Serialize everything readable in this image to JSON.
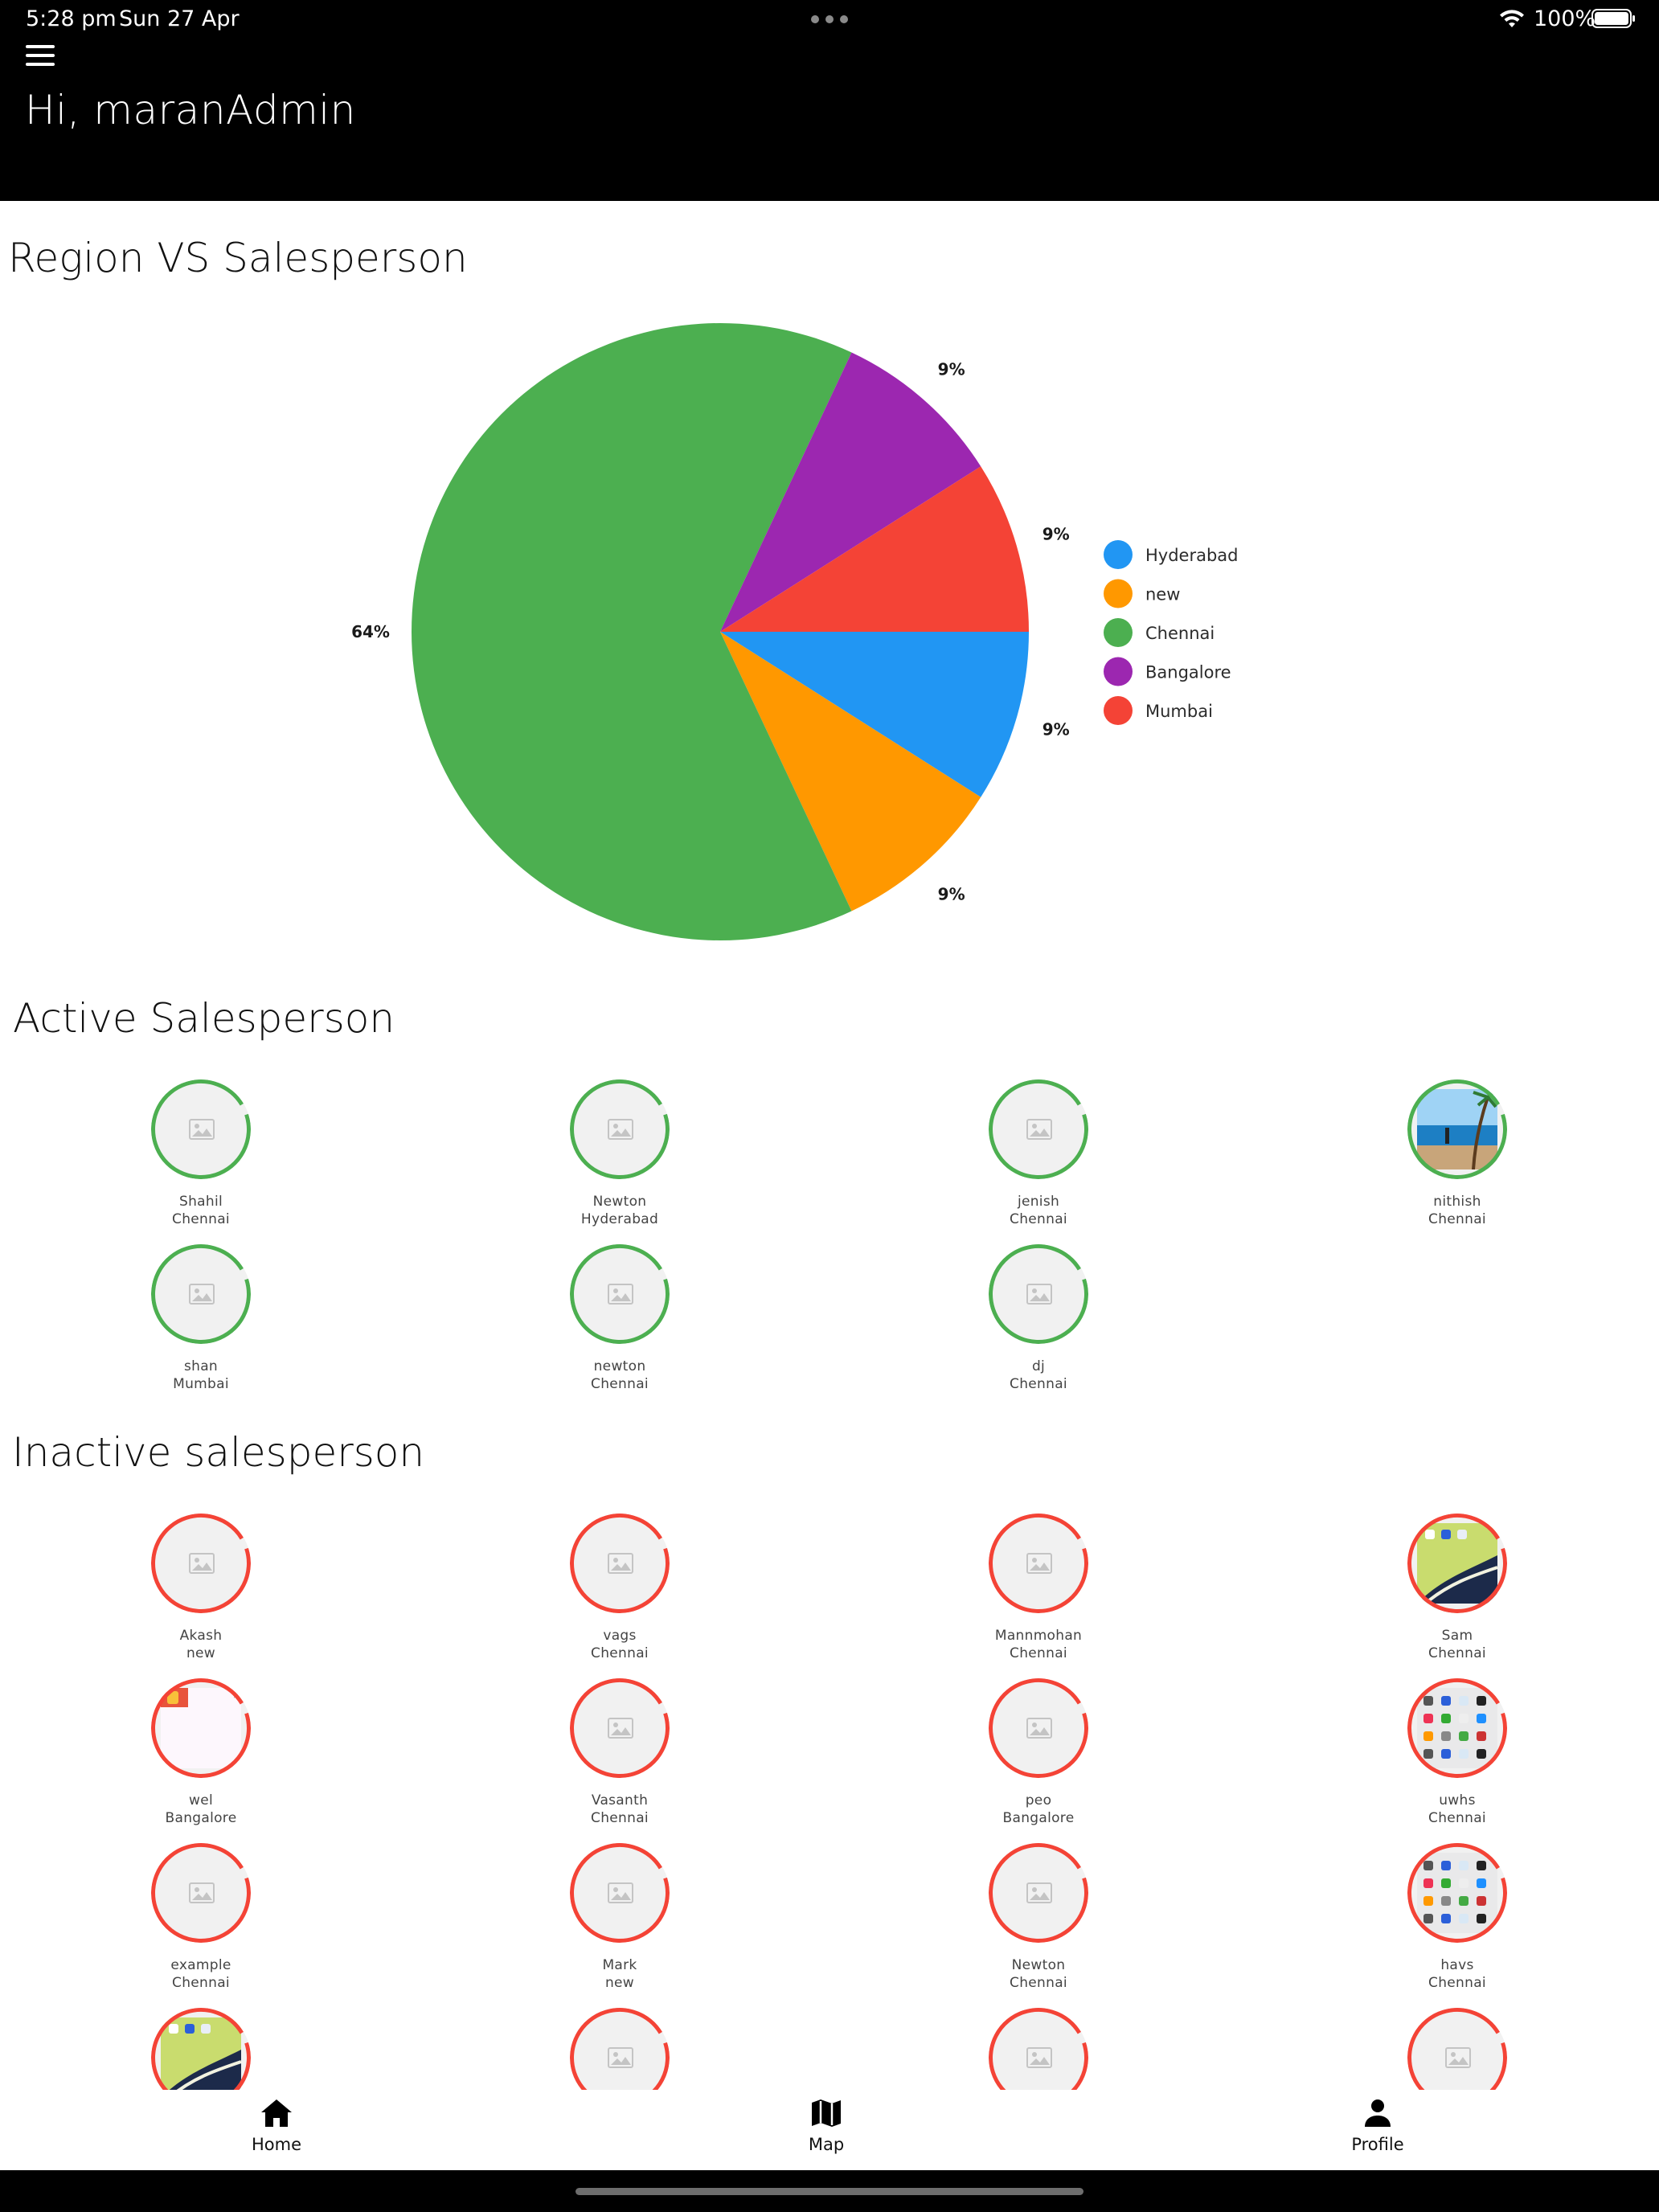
{
  "status_bar": {
    "time": "5:28 pm",
    "date": "Sun 27 Apr",
    "battery": "100%"
  },
  "header": {
    "greeting": "Hi, maranAdmin",
    "menu_icon": "hamburger-menu-icon"
  },
  "chart_section": {
    "title": "Region VS Salesperson"
  },
  "chart_data": {
    "type": "pie",
    "title": "Region VS Salesperson",
    "slices": [
      {
        "label": "Hyderabad",
        "value": 9,
        "display": "9%",
        "color": "#2196F3"
      },
      {
        "label": "new",
        "value": 9,
        "display": "9%",
        "color": "#FF9800"
      },
      {
        "label": "Chennai",
        "value": 64,
        "display": "64%",
        "color": "#4CAF50"
      },
      {
        "label": "Bangalore",
        "value": 9,
        "display": "9%",
        "color": "#9C27B0"
      },
      {
        "label": "Mumbai",
        "value": 9,
        "display": "9%",
        "color": "#F44336"
      }
    ],
    "legend_position": "right"
  },
  "active_section": {
    "title": "Active Salesperson",
    "ring_color": "#4CAF50",
    "people": [
      {
        "name": "Shahil",
        "city": "Chennai",
        "photo": ""
      },
      {
        "name": "Newton",
        "city": "Hyderabad",
        "photo": ""
      },
      {
        "name": "jenish",
        "city": "Chennai",
        "photo": ""
      },
      {
        "name": "nithish",
        "city": "Chennai",
        "photo": "beach"
      },
      {
        "name": "shan",
        "city": "Mumbai",
        "photo": ""
      },
      {
        "name": "newton",
        "city": "Chennai",
        "photo": ""
      },
      {
        "name": "dj",
        "city": "Chennai",
        "photo": ""
      }
    ]
  },
  "inactive_section": {
    "title": "Inactive salesperson",
    "ring_color": "#F44336",
    "people": [
      {
        "name": "Akash",
        "city": "new",
        "photo": ""
      },
      {
        "name": "vags",
        "city": "Chennai",
        "photo": ""
      },
      {
        "name": "Mannmohan",
        "city": "Chennai",
        "photo": ""
      },
      {
        "name": "Sam",
        "city": "Chennai",
        "photo": "wallpaper"
      },
      {
        "name": "wel",
        "city": "Bangalore",
        "photo": "app"
      },
      {
        "name": "Vasanth",
        "city": "Chennai",
        "photo": ""
      },
      {
        "name": "peo",
        "city": "Bangalore",
        "photo": ""
      },
      {
        "name": "uwhs",
        "city": "Chennai",
        "photo": "homescreen"
      },
      {
        "name": "example",
        "city": "Chennai",
        "photo": ""
      },
      {
        "name": "Mark",
        "city": "new",
        "photo": ""
      },
      {
        "name": "Newton",
        "city": "Chennai",
        "photo": ""
      },
      {
        "name": "havs",
        "city": "Chennai",
        "photo": "homescreen"
      },
      {
        "name": "",
        "city": "",
        "photo": "wallpaper"
      },
      {
        "name": "",
        "city": "",
        "photo": ""
      },
      {
        "name": "",
        "city": "",
        "photo": ""
      },
      {
        "name": "",
        "city": "",
        "photo": ""
      }
    ]
  },
  "bottom_nav": {
    "items": [
      {
        "label": "Home",
        "icon": "home-icon"
      },
      {
        "label": "Map",
        "icon": "map-icon"
      },
      {
        "label": "Profile",
        "icon": "person-icon"
      }
    ]
  }
}
